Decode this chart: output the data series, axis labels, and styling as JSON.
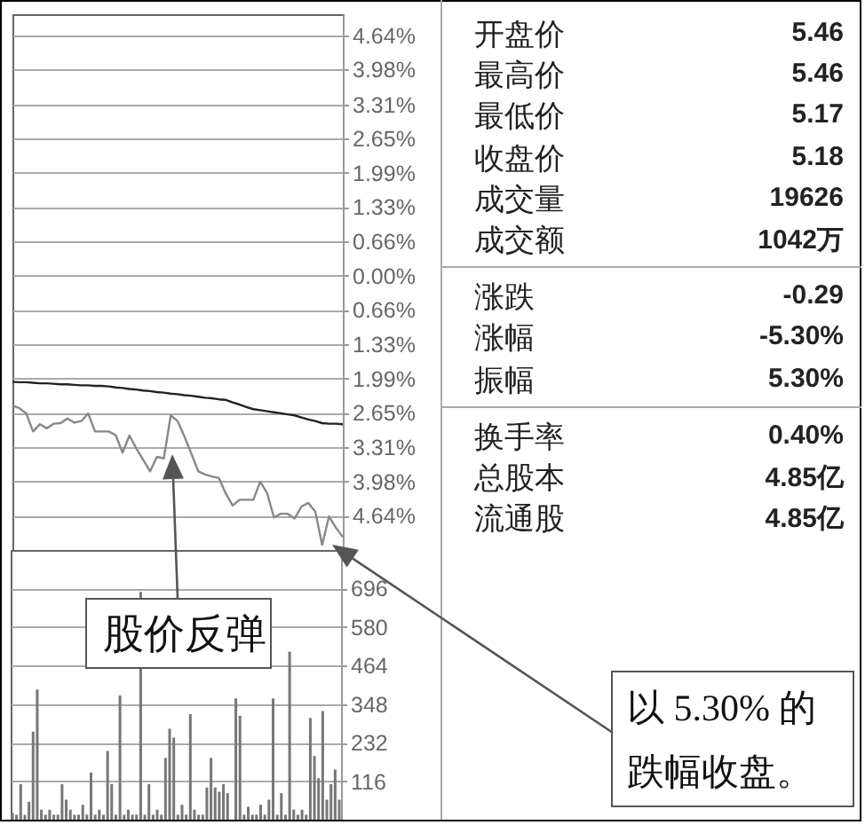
{
  "chart_data": [
    {
      "type": "line",
      "categories": [
        null,
        null,
        null,
        null,
        null,
        null,
        null,
        null,
        null,
        null,
        null,
        null,
        null,
        null,
        null,
        null,
        null,
        null,
        null,
        null,
        null,
        null,
        null,
        null,
        null,
        null,
        null,
        null,
        null,
        null,
        null,
        null,
        null,
        null,
        null,
        null,
        null,
        null,
        null,
        null,
        null,
        null,
        null,
        null,
        null,
        null,
        null,
        null,
        null
      ],
      "ylim": [
        -5.3,
        5.05
      ],
      "yticks": [
        {
          "value": 4.64,
          "label": "4.64%"
        },
        {
          "value": 3.98,
          "label": "3.98%"
        },
        {
          "value": 3.31,
          "label": "3.31%"
        },
        {
          "value": 2.65,
          "label": "2.65%"
        },
        {
          "value": 1.99,
          "label": "1.99%"
        },
        {
          "value": 1.33,
          "label": "1.33%"
        },
        {
          "value": 0.66,
          "label": "0.66%"
        },
        {
          "value": 0,
          "label": "0.00%"
        },
        {
          "value": -0.66,
          "label": "0.66%"
        },
        {
          "value": -1.33,
          "label": "1.33%"
        },
        {
          "value": -1.99,
          "label": "1.99%"
        },
        {
          "value": -2.65,
          "label": "2.65%"
        },
        {
          "value": -3.31,
          "label": "3.31%"
        },
        {
          "value": -3.98,
          "label": "3.98%"
        },
        {
          "value": -4.64,
          "label": "4.64%"
        }
      ],
      "grid": "y",
      "tick_labels": "y",
      "series": [
        {
          "color": "#888888",
          "values": [
            -2.51,
            -2.56,
            -2.66,
            -3.01,
            -2.87,
            -2.95,
            -2.86,
            -2.85,
            -2.76,
            -2.84,
            -2.81,
            -2.66,
            -3.01,
            -3.01,
            -3.01,
            -3.08,
            -3.42,
            -3.09,
            -3.34,
            -3.56,
            -3.78,
            -3.5,
            -3.53,
            -2.7,
            -2.81,
            -3.11,
            -3.44,
            -3.78,
            -3.84,
            -3.88,
            -3.91,
            -4.21,
            -4.44,
            -4.33,
            -4.33,
            -4.33,
            -3.98,
            -4.2,
            -4.67,
            -4.6,
            -4.6,
            -4.69,
            -4.46,
            -4.39,
            -4.56,
            -5.2,
            -4.65,
            -4.87,
            -5.05
          ]
        },
        {
          "color": "#222222",
          "values": [
            -2.05,
            -2.06,
            -2.06,
            -2.07,
            -2.08,
            -2.08,
            -2.09,
            -2.1,
            -2.1,
            -2.11,
            -2.12,
            -2.12,
            -2.13,
            -2.13,
            -2.14,
            -2.16,
            -2.17,
            -2.19,
            -2.2,
            -2.22,
            -2.23,
            -2.25,
            -2.26,
            -2.28,
            -2.29,
            -2.31,
            -2.32,
            -2.34,
            -2.36,
            -2.37,
            -2.39,
            -2.4,
            -2.45,
            -2.49,
            -2.54,
            -2.58,
            -2.6,
            -2.62,
            -2.64,
            -2.66,
            -2.68,
            -2.7,
            -2.74,
            -2.78,
            -2.81,
            -2.85,
            -2.86,
            -2.86,
            -2.87
          ]
        }
      ],
      "annotations": [
        "股价反弹",
        "以 5.30% 的跌幅收盘。"
      ]
    },
    {
      "type": "bar",
      "categories": [
        null,
        null,
        null,
        null,
        null,
        null,
        null,
        null,
        null,
        null,
        null,
        null,
        null,
        null,
        null,
        null,
        null,
        null,
        null,
        null,
        null,
        null,
        null,
        null,
        null,
        null,
        null,
        null,
        null,
        null,
        null,
        null,
        null,
        null,
        null,
        null,
        null,
        null,
        null,
        null,
        null,
        null,
        null,
        null,
        null,
        null,
        null,
        null,
        null,
        null,
        null,
        null,
        null,
        null,
        null,
        null,
        null,
        null,
        null,
        null,
        null,
        null,
        null,
        null,
        null,
        null,
        null,
        null,
        null,
        null,
        null,
        null,
        null,
        null,
        null,
        null,
        null,
        null,
        null,
        null
      ],
      "ylim": [
        0,
        812
      ],
      "yticks": [
        116,
        232,
        348,
        464,
        580,
        696
      ],
      "grid": "y",
      "tick_labels": "y",
      "color": "#777777",
      "values": [
        21,
        15,
        107,
        15,
        54,
        265,
        392,
        30,
        15,
        30,
        15,
        15,
        107,
        60,
        30,
        15,
        15,
        45,
        15,
        142,
        15,
        30,
        15,
        207,
        107,
        15,
        374,
        15,
        30,
        15,
        15,
        686,
        15,
        107,
        15,
        30,
        15,
        186,
        274,
        247,
        15,
        45,
        15,
        318,
        30,
        15,
        15,
        97,
        186,
        97,
        84,
        107,
        80,
        null,
        365,
        313,
        15,
        39,
        15,
        15,
        45,
        15,
        60,
        365,
        15,
        80,
        15,
        506,
        30,
        15,
        30,
        15,
        306,
        192,
        125,
        327,
        60,
        107,
        151,
        60
      ]
    },
    {
      "type": "other",
      "annotations": [
        "开盘价",
        "5.46",
        "最高价",
        "5.46",
        "最低价",
        "5.17",
        "收盘价",
        "5.18",
        "成交量",
        "19626",
        "成交额",
        "1042万",
        "涨跌",
        "-0.29",
        "涨幅",
        "-5.30%",
        "振幅",
        "5.30%",
        "换手率",
        "0.40%",
        "总股本",
        "4.85亿",
        "流通股",
        "4.85亿"
      ]
    }
  ]
}
